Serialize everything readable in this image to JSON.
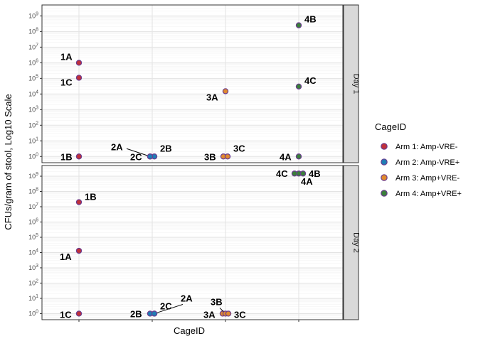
{
  "chart_data": {
    "type": "scatter",
    "ylabel": "CFUs/gram of stool, Log10 Scale",
    "xlabel": "CageID",
    "y_scale": "log10",
    "ylim": [
      0.4,
      5000000000
    ],
    "y_ticks": [
      {
        "value": 1,
        "label": "10^0"
      },
      {
        "value": 10,
        "label": "10^1"
      },
      {
        "value": 100,
        "label": "10^2"
      },
      {
        "value": 1000,
        "label": "10^3"
      },
      {
        "value": 10000,
        "label": "10^4"
      },
      {
        "value": 100000,
        "label": "10^5"
      },
      {
        "value": 1000000,
        "label": "10^6"
      },
      {
        "value": 10000000,
        "label": "10^7"
      },
      {
        "value": 100000000,
        "label": "10^8"
      },
      {
        "value": 1000000000,
        "label": "10^9"
      }
    ],
    "x_groups": [
      "Arm 1",
      "Arm 2",
      "Arm 3",
      "Arm 4"
    ],
    "x_tick_labels_shown": false,
    "grid": true,
    "legend": {
      "title": "CageID",
      "position": "right",
      "entries": [
        {
          "name": "Arm 1: Amp-VRE-",
          "color": "#C0303A"
        },
        {
          "name": "Arm 2: Amp-VRE+",
          "color": "#1F7DB5"
        },
        {
          "name": "Arm 3: Amp+VRE-",
          "color": "#E08A2E"
        },
        {
          "name": "Arm 4: Amp+VRE+",
          "color": "#3A7F3A"
        }
      ]
    },
    "panels": [
      {
        "strip": "Day 1",
        "points": [
          {
            "arm": 1,
            "label": "1A",
            "y": 1000000
          },
          {
            "arm": 1,
            "label": "1C",
            "y": 110000
          },
          {
            "arm": 1,
            "label": "1B",
            "y": 1
          },
          {
            "arm": 2,
            "label": "2A",
            "y": 1
          },
          {
            "arm": 2,
            "label": "2B",
            "y": 1
          },
          {
            "arm": 2,
            "label": "2C",
            "y": 1
          },
          {
            "arm": 3,
            "label": "3A",
            "y": 15000
          },
          {
            "arm": 3,
            "label": "3B",
            "y": 1
          },
          {
            "arm": 3,
            "label": "3C",
            "y": 1
          },
          {
            "arm": 4,
            "label": "4B",
            "y": 250000000
          },
          {
            "arm": 4,
            "label": "4C",
            "y": 30000
          },
          {
            "arm": 4,
            "label": "4A",
            "y": 1
          }
        ]
      },
      {
        "strip": "Day 2",
        "points": [
          {
            "arm": 1,
            "label": "1B",
            "y": 20000000
          },
          {
            "arm": 1,
            "label": "1A",
            "y": 13000
          },
          {
            "arm": 1,
            "label": "1C",
            "y": 1
          },
          {
            "arm": 2,
            "label": "2A",
            "y": 1
          },
          {
            "arm": 2,
            "label": "2B",
            "y": 1
          },
          {
            "arm": 2,
            "label": "2C",
            "y": 1
          },
          {
            "arm": 3,
            "label": "3A",
            "y": 1
          },
          {
            "arm": 3,
            "label": "3B",
            "y": 1
          },
          {
            "arm": 3,
            "label": "3C",
            "y": 1
          },
          {
            "arm": 4,
            "label": "4A",
            "y": 1500000000
          },
          {
            "arm": 4,
            "label": "4B",
            "y": 1500000000
          },
          {
            "arm": 4,
            "label": "4C",
            "y": 1500000000
          }
        ]
      }
    ]
  }
}
